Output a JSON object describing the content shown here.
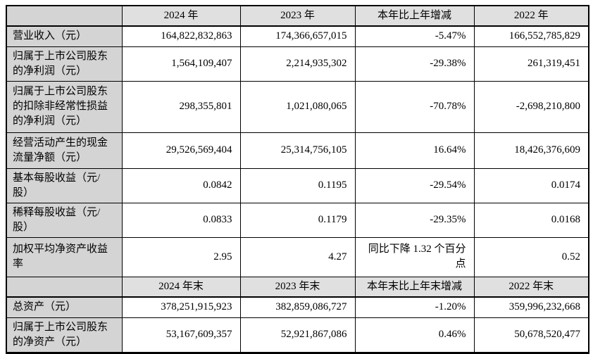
{
  "colors": {
    "label_column_bg": "#d4d4d4",
    "header_row_bg": "#e0e0e0",
    "border": "#000000",
    "data_cell_bg": "#ffffff"
  },
  "table": {
    "header1": [
      "",
      "2024 年",
      "2023 年",
      "本年比上年增减",
      "2022 年"
    ],
    "rows1": [
      {
        "label": "营业收入（元）",
        "y2024": "164,822,832,863",
        "y2023": "174,366,657,015",
        "chg": "-5.47%",
        "y2022": "166,552,785,829"
      },
      {
        "label": "归属于上市公司股东的净利润（元）",
        "y2024": "1,564,109,407",
        "y2023": "2,214,935,302",
        "chg": "-29.38%",
        "y2022": "261,319,451"
      },
      {
        "label": "归属于上市公司股东的扣除非经常性损益的净利润（元）",
        "y2024": "298,355,801",
        "y2023": "1,021,080,065",
        "chg": "-70.78%",
        "y2022": "-2,698,210,800"
      },
      {
        "label": "经营活动产生的现金流量净额（元）",
        "y2024": "29,526,569,404",
        "y2023": "25,314,756,105",
        "chg": "16.64%",
        "y2022": "18,426,376,609"
      },
      {
        "label": "基本每股收益（元/股）",
        "y2024": "0.0842",
        "y2023": "0.1195",
        "chg": "-29.54%",
        "y2022": "0.0174"
      },
      {
        "label": "稀释每股收益（元/股）",
        "y2024": "0.0833",
        "y2023": "0.1179",
        "chg": "-29.35%",
        "y2022": "0.0168"
      },
      {
        "label": "加权平均净资产收益率",
        "y2024": "2.95",
        "y2023": "4.27",
        "chg": "同比下降 1.32 个百分点",
        "y2022": "0.52"
      }
    ],
    "header2": [
      "",
      "2024 年末",
      "2023 年末",
      "本年末比上年末增减",
      "2022 年末"
    ],
    "rows2": [
      {
        "label": "总资产（元）",
        "y2024": "378,251,915,923",
        "y2023": "382,859,086,727",
        "chg": "-1.20%",
        "y2022": "359,996,232,668"
      },
      {
        "label": "归属于上市公司股东的净资产（元）",
        "y2024": "53,167,609,357",
        "y2023": "52,921,867,086",
        "chg": "0.46%",
        "y2022": "50,678,520,477"
      }
    ]
  }
}
